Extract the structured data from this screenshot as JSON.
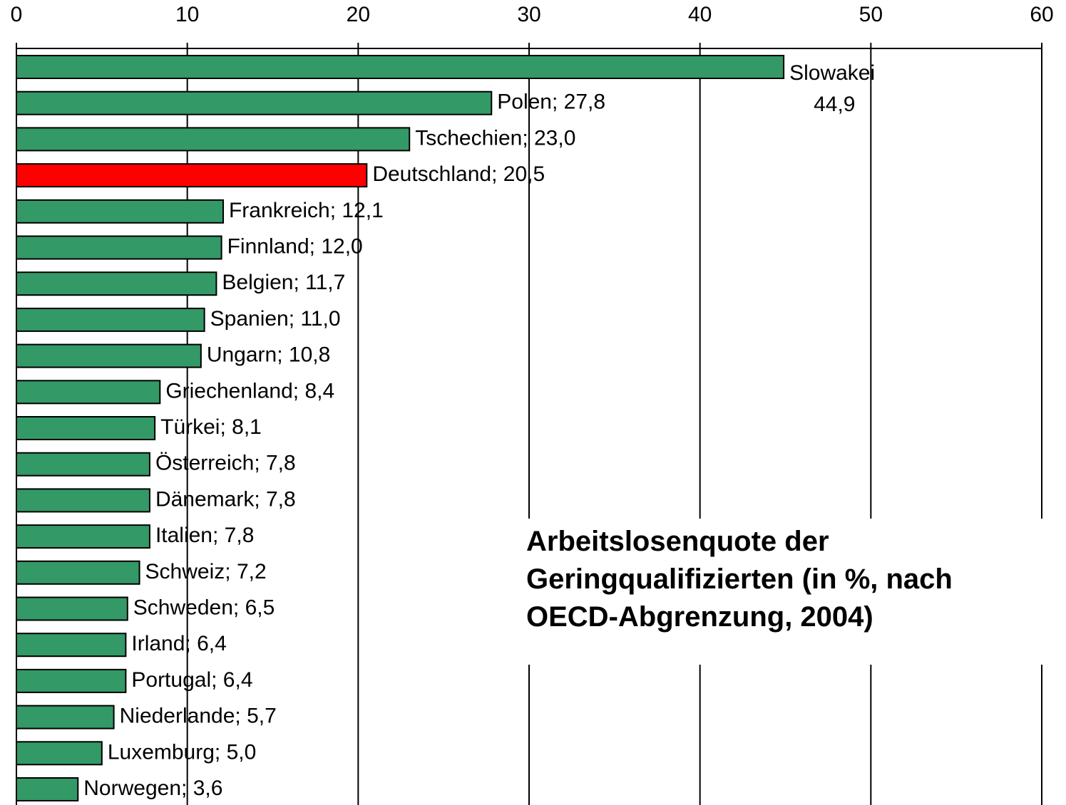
{
  "chart_data": {
    "type": "bar",
    "orientation": "horizontal",
    "title": "Arbeitslosenquote der\nGeringqualifizierten (in %, nach\nOECD-Abgrenzung, 2004)",
    "categories": [
      "Slowakei",
      "Polen",
      "Tschechien",
      "Deutschland",
      "Frankreich",
      "Finnland",
      "Belgien",
      "Spanien",
      "Ungarn",
      "Griechenland",
      "Türkei",
      "Österreich",
      "Dänemark",
      "Italien",
      "Schweiz",
      "Schweden",
      "Irland",
      "Portugal",
      "Niederlande",
      "Luxemburg",
      "Norwegen"
    ],
    "values": [
      44.9,
      27.8,
      23.0,
      20.5,
      12.1,
      12.0,
      11.7,
      11.0,
      10.8,
      8.4,
      8.1,
      7.8,
      7.8,
      7.8,
      7.2,
      6.5,
      6.4,
      6.4,
      5.7,
      5.0,
      3.6
    ],
    "value_labels": [
      "44,9",
      "27,8",
      "23,0",
      "20,5",
      "12,1",
      "12,0",
      "11,7",
      "11,0",
      "10,8",
      "8,4",
      "8,1",
      "7,8",
      "7,8",
      "7,8",
      "7,2",
      "6,5",
      "6,4",
      "6,4",
      "5,7",
      "5,0",
      "3,6"
    ],
    "label_separator": "; ",
    "colors": [
      "#339966",
      "#339966",
      "#339966",
      "#ff0000",
      "#339966",
      "#339966",
      "#339966",
      "#339966",
      "#339966",
      "#339966",
      "#339966",
      "#339966",
      "#339966",
      "#339966",
      "#339966",
      "#339966",
      "#339966",
      "#339966",
      "#339966",
      "#339966",
      "#339966"
    ],
    "xlim": [
      0,
      60
    ],
    "xticks": [
      0,
      10,
      20,
      30,
      40,
      50,
      60
    ],
    "grid": true
  }
}
